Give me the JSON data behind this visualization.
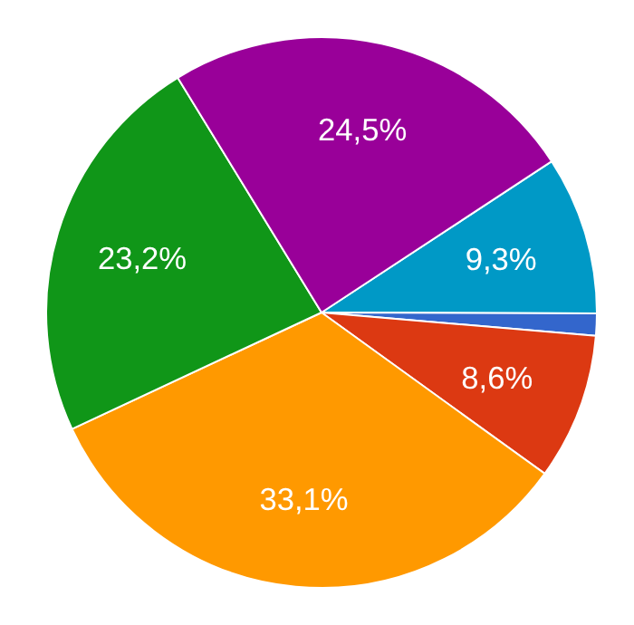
{
  "chart_data": {
    "type": "pie",
    "categories": [
      null,
      null,
      null,
      null,
      null,
      null
    ],
    "values": [
      9.3,
      1.3,
      8.6,
      33.1,
      23.2,
      24.5
    ],
    "colors": [
      "#0099c6",
      "#3366cc",
      "#dc3912",
      "#ff9900",
      "#109618",
      "#990099"
    ],
    "value_labels": [
      "9,3%",
      null,
      "8,6%",
      "33,1%",
      "23,2%",
      "24,5%"
    ]
  }
}
